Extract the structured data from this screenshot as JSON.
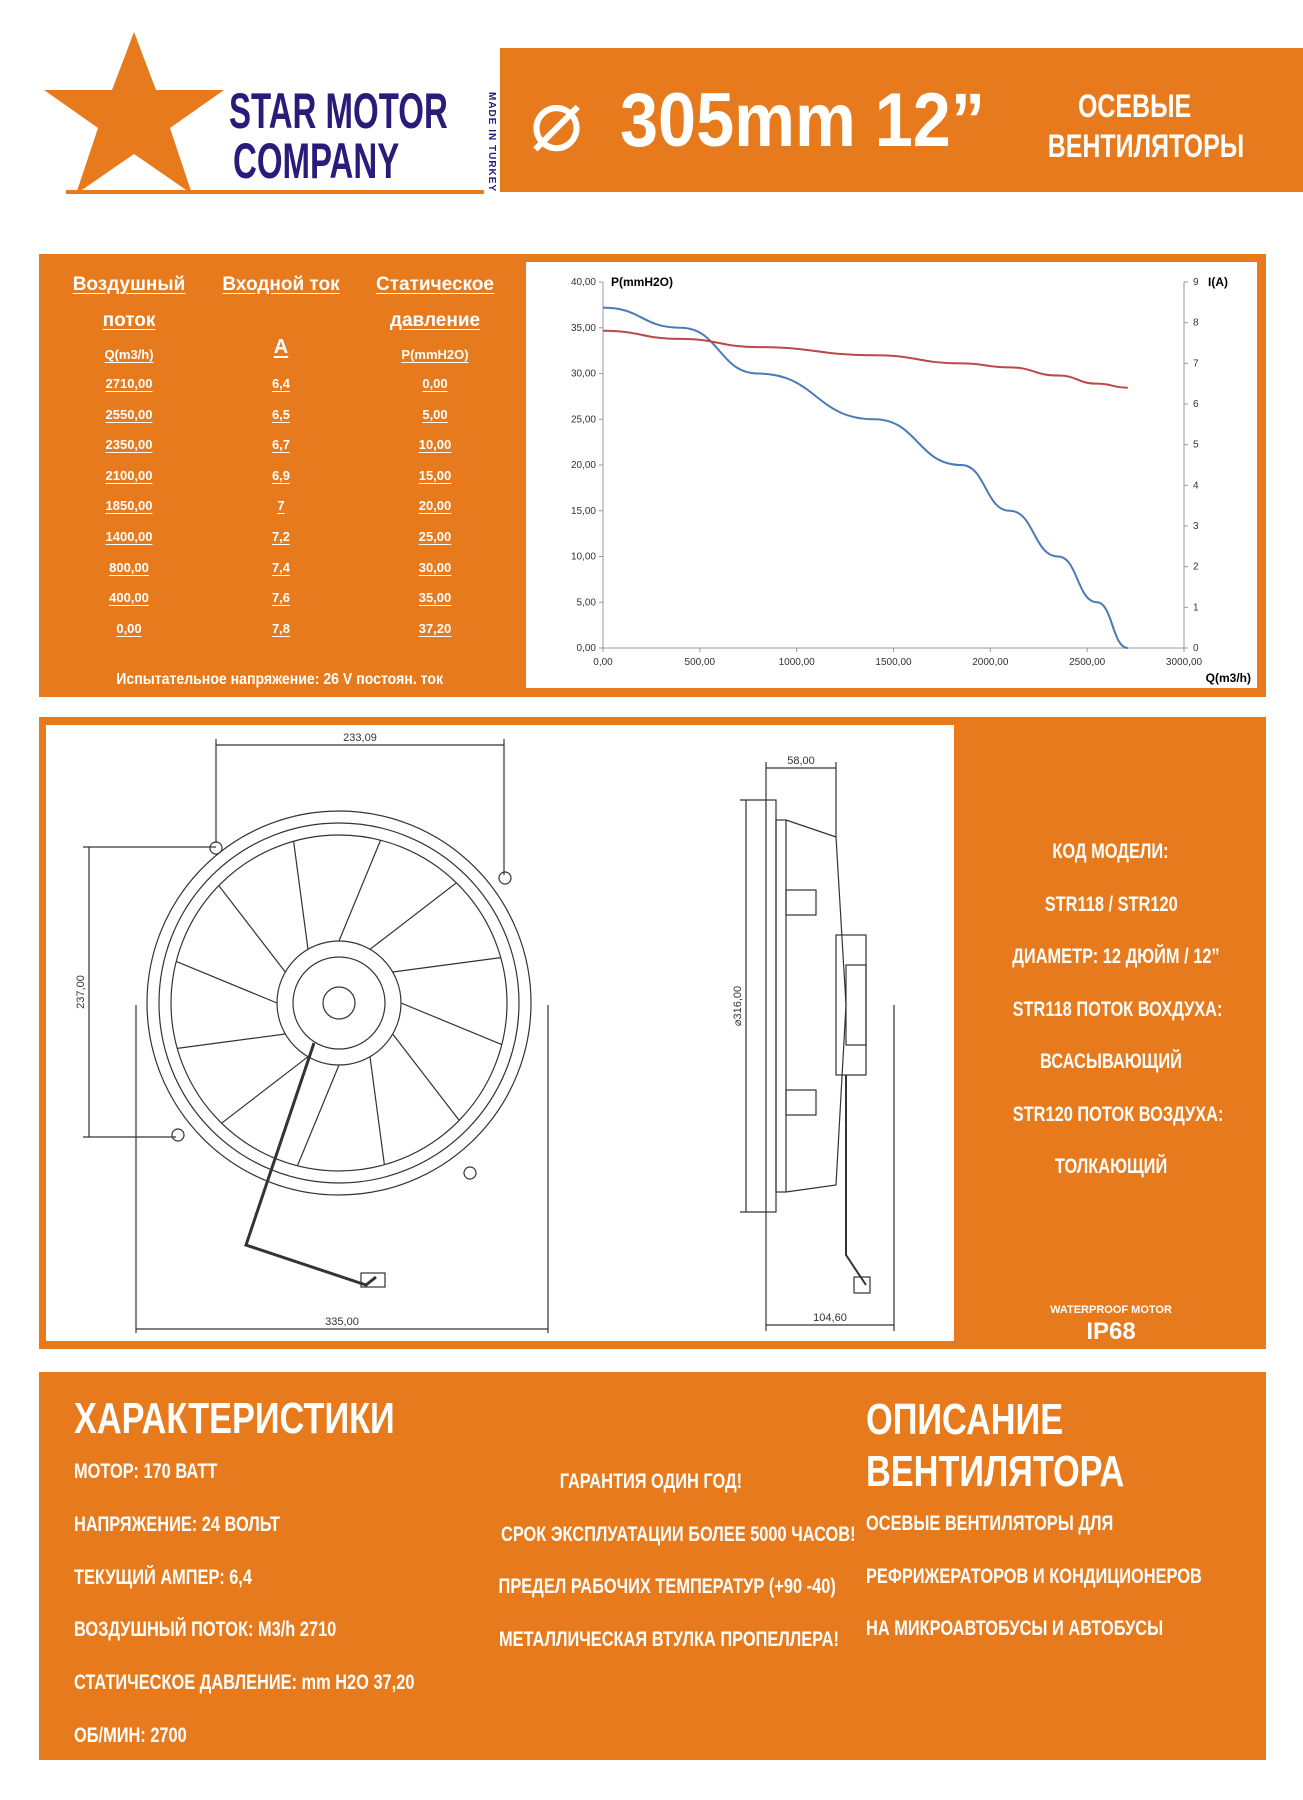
{
  "brand": {
    "name_line1": "STAR MOTOR",
    "name_line2": "COMPANY",
    "made_in": "MADE IN TURKEY",
    "star_color": "#e67a1c",
    "text_color": "#2a1a7a"
  },
  "header": {
    "diameter_symbol": "⌀",
    "size": "305mm 12”",
    "title_line1": "ОСЕВЫЕ",
    "title_line2": "ВЕНТИЛЯТОРЫ",
    "accent": "#e67a1c"
  },
  "table": {
    "headers": [
      {
        "line1": "Воздушный",
        "line2": "поток",
        "unit": "Q(m3/h)"
      },
      {
        "line1": "Входной ток",
        "line2": "",
        "unit": "A"
      },
      {
        "line1": "Статическое",
        "line2": "давление",
        "unit": "P(mmH2O)"
      }
    ],
    "rows": [
      [
        "2710,00",
        "6,4",
        "0,00"
      ],
      [
        "2550,00",
        "6,5",
        "5,00"
      ],
      [
        "2350,00",
        "6,7",
        "10,00"
      ],
      [
        "2100,00",
        "6,9",
        "15,00"
      ],
      [
        "1850,00",
        "7",
        "20,00"
      ],
      [
        "1400,00",
        "7,2",
        "25,00"
      ],
      [
        "800,00",
        "7,4",
        "30,00"
      ],
      [
        "400,00",
        "7,6",
        "35,00"
      ],
      [
        "0,00",
        "7,8",
        "37,20"
      ]
    ],
    "footnote": "Испытательное напряжение: 26 V постоян. ток"
  },
  "chart_data": {
    "type": "line",
    "xlabel": "Q(m3/h)",
    "ylabel": "P(mmH2O)",
    "y2label": "I(A)",
    "xlim": [
      0,
      3000
    ],
    "ylim": [
      0,
      40
    ],
    "y2lim": [
      0,
      9
    ],
    "x_ticks": [
      "0,00",
      "500,00",
      "1000,00",
      "1500,00",
      "2000,00",
      "2500,00",
      "3000,00"
    ],
    "y_ticks": [
      "0,00",
      "5,00",
      "10,00",
      "15,00",
      "20,00",
      "25,00",
      "30,00",
      "35,00",
      "40,00"
    ],
    "y2_ticks": [
      "0",
      "1",
      "2",
      "3",
      "4",
      "5",
      "6",
      "7",
      "8",
      "9"
    ],
    "grid": false,
    "series": [
      {
        "axis": "left",
        "color": "#4a7ab8",
        "x": [
          0,
          400,
          800,
          1400,
          1850,
          2100,
          2350,
          2550,
          2710
        ],
        "y": [
          37.2,
          35,
          30,
          25,
          20,
          15,
          10,
          5,
          0
        ]
      },
      {
        "axis": "right",
        "color": "#b84a4a",
        "x": [
          0,
          400,
          800,
          1400,
          1850,
          2100,
          2350,
          2550,
          2710
        ],
        "y": [
          7.8,
          7.6,
          7.4,
          7.2,
          7.0,
          6.9,
          6.7,
          6.5,
          6.4
        ]
      }
    ]
  },
  "drawing": {
    "dims": {
      "top_width": "233,09",
      "height": "237,00",
      "bottom_width": "335,00",
      "side_depth": "58,00",
      "side_diameter": "⌀316,00",
      "side_total": "104,60"
    }
  },
  "model_info": {
    "items": [
      "КОД МОДЕЛИ:",
      "STR118 / STR120",
      "ДИАМЕТР: 12 ДЮЙМ / 12”",
      "STR118 ПОТОК ВОХДУХА:",
      "ВСАСЫВАЮЩИЙ",
      "STR120 ПОТОК ВОЗДУХА:",
      "ТОЛКАЮЩИЙ"
    ],
    "waterproof": "WATERPROOF MOTOR",
    "ip": "IP68"
  },
  "specs": {
    "title": "ХАРАКТЕРИСТИКИ",
    "items": [
      "МОТОР: 170 ВАТТ",
      "НАПРЯЖЕНИЕ: 24 ВОЛЬТ",
      "ТЕКУЩИЙ АМПЕР: 6,4",
      "ВОЗДУШНЫЙ ПОТОК: M3/h 2710",
      "СТАТИЧЕСКОЕ ДАВЛЕНИЕ: mm H2O   37,20",
      "ОБ/МИН: 2700"
    ]
  },
  "features": {
    "items": [
      "ГАРАНТИЯ ОДИН ГОД!",
      "СРОК ЭКСПЛУАТАЦИИ БОЛЕЕ 5000 ЧАСОВ!",
      "ПРЕДЕЛ РАБОЧИХ ТЕМПЕРАТУР (+90 -40)",
      "МЕТАЛЛИЧЕСКАЯ ВТУЛКА ПРОПЕЛЛЕРА!"
    ]
  },
  "description": {
    "title_line1": "ОПИСАНИЕ",
    "title_line2": "ВЕНТИЛЯТОРА",
    "items": [
      "ОСЕВЫЕ ВЕНТИЛЯТОРЫ ДЛЯ",
      "РЕФРИЖЕРАТОРОВ И КОНДИЦИОНЕРОВ",
      "НА МИКРОАВТОБУСЫ И АВТОБУСЫ"
    ]
  }
}
